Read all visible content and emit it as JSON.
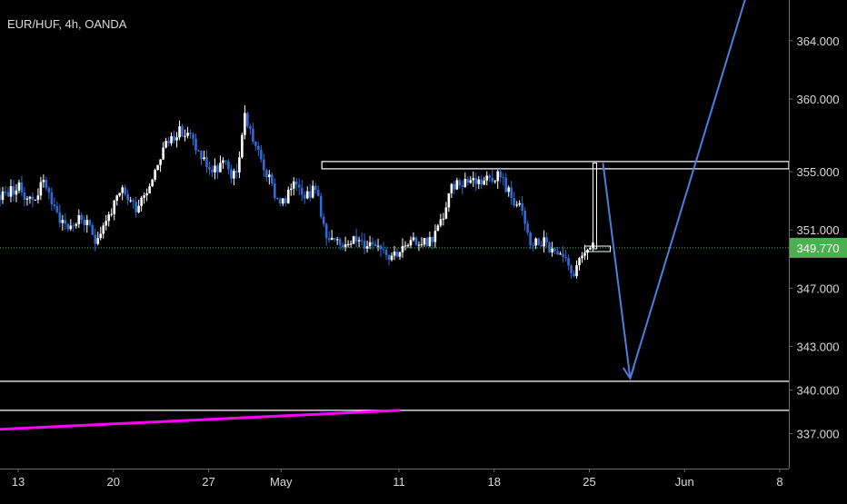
{
  "chart_data": {
    "type": "candlestick",
    "title": "EUR/HUF, 4h, OANDA",
    "symbol": "EUR/HUF",
    "interval": "4h",
    "source": "OANDA",
    "current_price": "349.770",
    "current_price_value": 349.77,
    "ylim": [
      334.6,
      366.8
    ],
    "xlim": [
      0,
      87
    ],
    "y_ticks": [
      {
        "label": "364.000",
        "value": 364.0
      },
      {
        "label": "360.000",
        "value": 360.0
      },
      {
        "label": "355.000",
        "value": 355.0
      },
      {
        "label": "351.000",
        "value": 351.0
      },
      {
        "label": "347.000",
        "value": 347.0
      },
      {
        "label": "343.000",
        "value": 343.0
      },
      {
        "label": "340.000",
        "value": 340.0
      },
      {
        "label": "337.000",
        "value": 337.0
      }
    ],
    "x_ticks": [
      {
        "label": "13",
        "day": 2
      },
      {
        "label": "20",
        "day": 12.5
      },
      {
        "label": "27",
        "day": 23
      },
      {
        "label": "May",
        "day": 31
      },
      {
        "label": "11",
        "day": 44
      },
      {
        "label": "18",
        "day": 54.5
      },
      {
        "label": "25",
        "day": 65
      },
      {
        "label": "Jun",
        "day": 75.5
      },
      {
        "label": "8",
        "day": 86
      }
    ],
    "price_path": [
      [
        0,
        353.4
      ],
      [
        2,
        353.9
      ],
      [
        3.5,
        353.0
      ],
      [
        5,
        354.4
      ],
      [
        6,
        352.3
      ],
      [
        7.5,
        351.2
      ],
      [
        9,
        351.8
      ],
      [
        10.5,
        350.4
      ],
      [
        12,
        352.0
      ],
      [
        13.5,
        353.6
      ],
      [
        15,
        352.6
      ],
      [
        16.5,
        354.2
      ],
      [
        18,
        356.6
      ],
      [
        19.5,
        357.8
      ],
      [
        21,
        357.4
      ],
      [
        22,
        356.2
      ],
      [
        23.5,
        354.9
      ],
      [
        24.5,
        355.6
      ],
      [
        26,
        354.5
      ],
      [
        27,
        358.9
      ],
      [
        28.5,
        356.2
      ],
      [
        29.5,
        354.7
      ],
      [
        30.5,
        353.2
      ],
      [
        31.5,
        352.8
      ],
      [
        32.5,
        354.7
      ],
      [
        33.5,
        353.6
      ],
      [
        35,
        353.7
      ],
      [
        36,
        350.3
      ],
      [
        37.5,
        349.9
      ],
      [
        38.5,
        350.5
      ],
      [
        40,
        350.0
      ],
      [
        41.5,
        350.3
      ],
      [
        43,
        349.3
      ],
      [
        44.5,
        349.7
      ],
      [
        46,
        350.2
      ],
      [
        47.5,
        350.3
      ],
      [
        48.5,
        351.3
      ],
      [
        50,
        354.1
      ],
      [
        51.5,
        354.5
      ],
      [
        53,
        354.4
      ],
      [
        55,
        354.9
      ],
      [
        56,
        353.7
      ],
      [
        57.5,
        352.3
      ],
      [
        58.5,
        350.0
      ],
      [
        60,
        350.2
      ],
      [
        61,
        349.4
      ],
      [
        62.5,
        348.6
      ],
      [
        63.5,
        348.0
      ],
      [
        64.5,
        349.6
      ],
      [
        65.5,
        349.8
      ]
    ],
    "price_seed": 23,
    "annotations": [
      {
        "type": "rectangle",
        "name": "resistance-zone",
        "day_from": 35.5,
        "day_to": 89,
        "price_from": 355.7,
        "price_to": 355.2,
        "color": "#ffffff"
      },
      {
        "type": "horizontal-line",
        "name": "target-level-upper",
        "price": 340.6,
        "color": "#ffffff"
      },
      {
        "type": "horizontal-line",
        "name": "target-level-lower",
        "price": 338.6,
        "color": "#ffffff"
      },
      {
        "type": "trend-line",
        "name": "magenta-trendline",
        "points": [
          [
            0,
            337.3
          ],
          [
            44,
            338.6
          ]
        ],
        "color": "#ff00ff"
      },
      {
        "type": "projection-arrow",
        "name": "projection-down-arrow",
        "points": [
          [
            66.5,
            355.6
          ],
          [
            69.5,
            340.8
          ]
        ],
        "color": "#4a7fe0"
      },
      {
        "type": "projection-line",
        "name": "projection-up-line",
        "points": [
          [
            69.5,
            340.8
          ],
          [
            82.5,
            367.5
          ]
        ],
        "color": "#4a7fe0"
      },
      {
        "type": "measure-bracket",
        "name": "measure-bracket",
        "day": 65.5,
        "price_from": 355.6,
        "price_to": 349.7,
        "color": "#ffffff"
      }
    ],
    "colors": {
      "background": "#000000",
      "up_candle": "#ffffff",
      "down_candle": "#2f6bd6",
      "axis_text": "#d9d9d9",
      "price_badge": "#4caf50",
      "current_price_line": "#4caf50",
      "projection": "#4a7fe0",
      "trendline": "#ff00ff"
    },
    "grid": false,
    "legend": "none"
  }
}
